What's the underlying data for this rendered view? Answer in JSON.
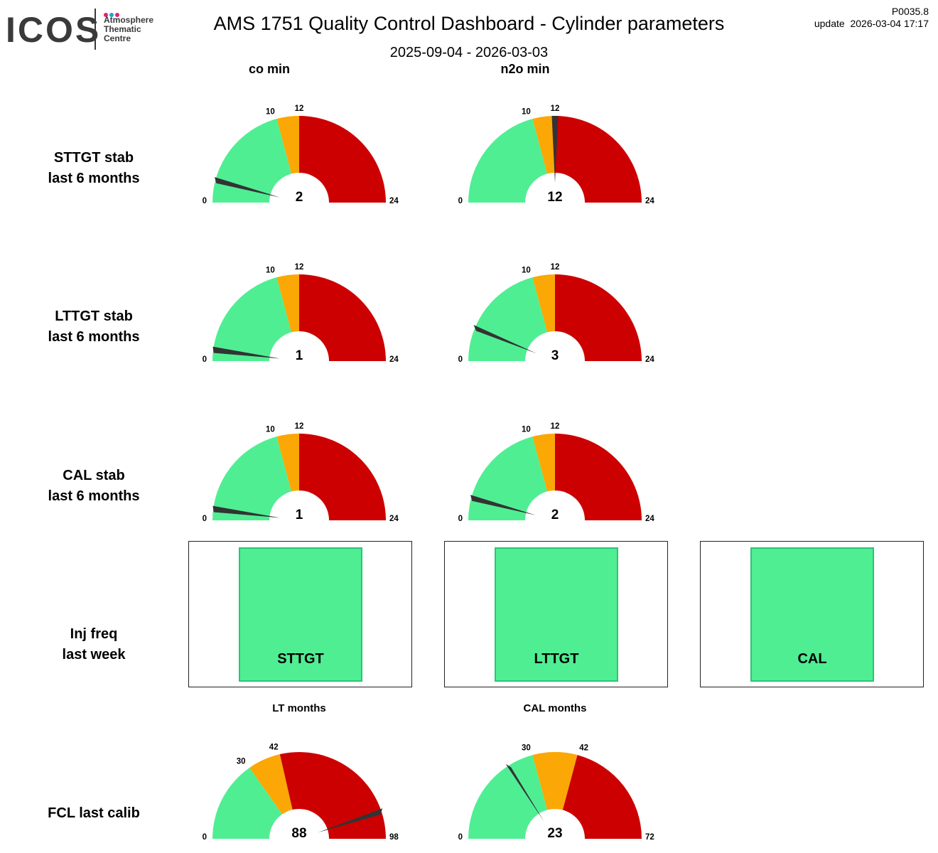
{
  "header": {
    "logo_word": "ICOS",
    "logo_sub_lines": [
      "Atmosphere",
      "Thematic",
      "Centre"
    ],
    "title": "AMS 1751 Quality Control Dashboard - Cylinder parameters",
    "date_range": "2025-09-04 - 2026-03-03",
    "code": "P0035.8",
    "update": "update  2026-03-04 17:17"
  },
  "colors": {
    "green": "#50ee93",
    "orange": "#fba705",
    "red": "#cc0000",
    "needle": "#333333",
    "logo_dots": [
      "#e5226a",
      "#1aa3e0",
      "#e5226a"
    ]
  },
  "columns": [
    "co min",
    "n2o min"
  ],
  "rows": {
    "sttgt": "STTGT stab\nlast 6 months",
    "lttgt": "LTTGT stab\nlast 6 months",
    "cal": "CAL stab\nlast 6 months",
    "inj": "Inj freq\nlast week",
    "fcl": "FCL last calib"
  },
  "chart_data": [
    {
      "type": "gauge",
      "row": "STTGT stab",
      "column": "co min",
      "value": 2,
      "min": 0,
      "max": 24,
      "thresholds": [
        10,
        12
      ]
    },
    {
      "type": "gauge",
      "row": "STTGT stab",
      "column": "n2o min",
      "value": 12,
      "min": 0,
      "max": 24,
      "thresholds": [
        10,
        12
      ]
    },
    {
      "type": "gauge",
      "row": "LTTGT stab",
      "column": "co min",
      "value": 1,
      "min": 0,
      "max": 24,
      "thresholds": [
        10,
        12
      ]
    },
    {
      "type": "gauge",
      "row": "LTTGT stab",
      "column": "n2o min",
      "value": 3,
      "min": 0,
      "max": 24,
      "thresholds": [
        10,
        12
      ]
    },
    {
      "type": "gauge",
      "row": "CAL stab",
      "column": "co min",
      "value": 1,
      "min": 0,
      "max": 24,
      "thresholds": [
        10,
        12
      ]
    },
    {
      "type": "gauge",
      "row": "CAL stab",
      "column": "n2o min",
      "value": 2,
      "min": 0,
      "max": 24,
      "thresholds": [
        10,
        12
      ]
    },
    {
      "type": "gauge",
      "row": "FCL last calib",
      "title": "LT months",
      "value": 88,
      "min": 0,
      "max": 98,
      "thresholds": [
        30,
        42
      ]
    },
    {
      "type": "gauge",
      "row": "FCL last calib",
      "title": "CAL months",
      "value": 23,
      "min": 0,
      "max": 72,
      "thresholds": [
        30,
        42
      ]
    }
  ],
  "injections": [
    {
      "label": "STTGT",
      "status": "ok"
    },
    {
      "label": "LTTGT",
      "status": "ok"
    },
    {
      "label": "CAL",
      "status": "ok"
    }
  ]
}
